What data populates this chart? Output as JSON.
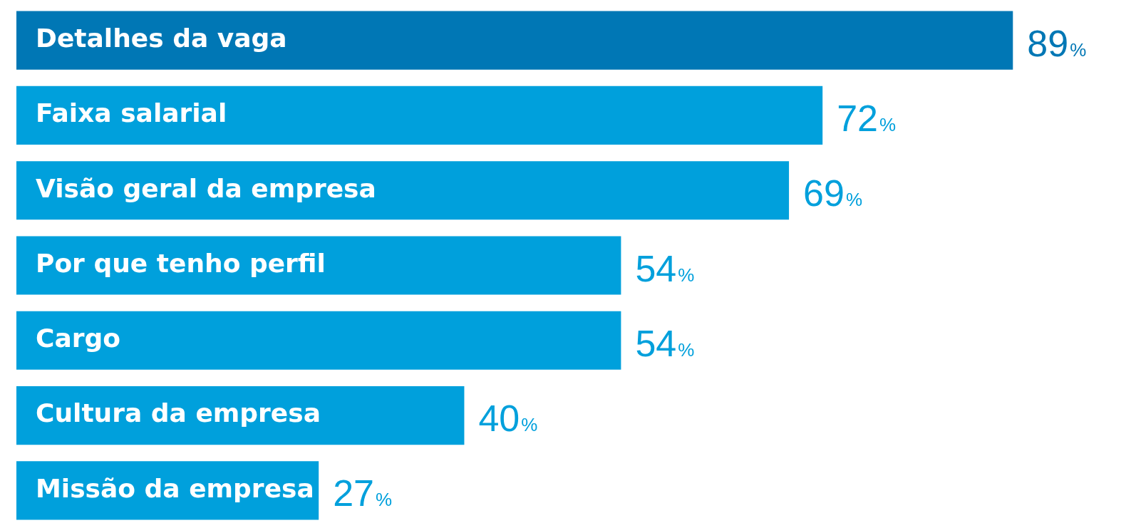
{
  "chart_data": {
    "type": "bar",
    "orientation": "horizontal",
    "categories": [
      "Detalhes da vaga",
      "Faixa salarial",
      "Visão geral da empresa",
      "Por que tenho perfil",
      "Cargo",
      "Cultura da empresa",
      "Missão da empresa"
    ],
    "values": [
      89,
      72,
      69,
      54,
      54,
      40,
      27
    ],
    "colors": [
      "#0077b5",
      "#00a0dc",
      "#00a0dc",
      "#00a0dc",
      "#00a0dc",
      "#00a0dc",
      "#00a0dc"
    ],
    "value_labels": [
      "89%",
      "72%",
      "69%",
      "54%",
      "54%",
      "40%",
      "27%"
    ],
    "tick_labels": false,
    "legend": false
  }
}
